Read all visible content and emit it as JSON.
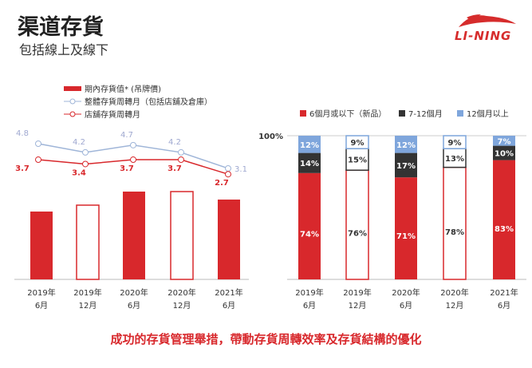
{
  "header": {
    "title": "渠道存貨",
    "subtitle": "包括線上及線下",
    "logo": "LI-NING"
  },
  "footer": "成功的存貨管理舉措，帶動存貨周轉效率及存貨結構的優化",
  "colors": {
    "red": "#d8282c",
    "dark": "#333333",
    "blue": "#7fa6dc",
    "grey_line": "#9fb5d8"
  },
  "chart_data": [
    {
      "type": "bar+line",
      "title": "",
      "categories": [
        "2019年\n6月",
        "2019年\n12月",
        "2020年\n6月",
        "2020年\n12月",
        "2021年\n6月"
      ],
      "category_lines": [
        [
          "2019年",
          "6月"
        ],
        [
          "2019年",
          "12月"
        ],
        [
          "2020年",
          "6月"
        ],
        [
          "2020年",
          "12月"
        ],
        [
          "2021年",
          "6月"
        ]
      ],
      "legend": [
        "期內存貨值* (吊牌價)",
        "整體存貨周轉月（包括店舖及倉庫）",
        "店舖存貨周轉月"
      ],
      "series": [
        {
          "name": "期內存貨值* (吊牌價)",
          "type": "bar",
          "values": [
            85,
            93,
            110,
            110,
            100
          ],
          "filled": [
            true,
            false,
            true,
            false,
            true
          ]
        },
        {
          "name": "整體存貨周轉月（包括店舖及倉庫）",
          "type": "line",
          "values": [
            4.8,
            4.2,
            4.7,
            4.2,
            3.1
          ],
          "labels": [
            "4.8",
            "4.2",
            "4.7",
            "4.2",
            "3.1"
          ]
        },
        {
          "name": "店舖存貨周轉月",
          "type": "line",
          "values": [
            3.7,
            3.4,
            3.7,
            3.7,
            2.7
          ],
          "labels": [
            "3.7",
            "3.4",
            "3.7",
            "3.7",
            "2.7"
          ]
        }
      ]
    },
    {
      "type": "bar",
      "stacked": true,
      "title": "",
      "ytick": "100%",
      "categories": [
        "2019年\n6月",
        "2019年\n12月",
        "2020年\n6月",
        "2020年\n12月",
        "2021年\n6月"
      ],
      "category_lines": [
        [
          "2019年",
          "6月"
        ],
        [
          "2019年",
          "12月"
        ],
        [
          "2020年",
          "6月"
        ],
        [
          "2020年",
          "12月"
        ],
        [
          "2021年",
          "6月"
        ]
      ],
      "legend": [
        "6個月或以下（新品）",
        "7-12個月",
        "12個月以上"
      ],
      "legend_placement": "top",
      "series": [
        {
          "name": "6個月或以下（新品）",
          "values": [
            74,
            76,
            71,
            78,
            83
          ],
          "labels": [
            "74%",
            "76%",
            "71%",
            "78%",
            "83%"
          ]
        },
        {
          "name": "7-12個月",
          "values": [
            14,
            15,
            17,
            13,
            10
          ],
          "labels": [
            "14%",
            "15%",
            "17%",
            "13%",
            "10%"
          ]
        },
        {
          "name": "12個月以上",
          "values": [
            12,
            9,
            12,
            9,
            7
          ],
          "labels": [
            "12%",
            "9%",
            "12%",
            "9%",
            "7%"
          ]
        }
      ],
      "filled": [
        true,
        false,
        true,
        false,
        true
      ]
    }
  ]
}
